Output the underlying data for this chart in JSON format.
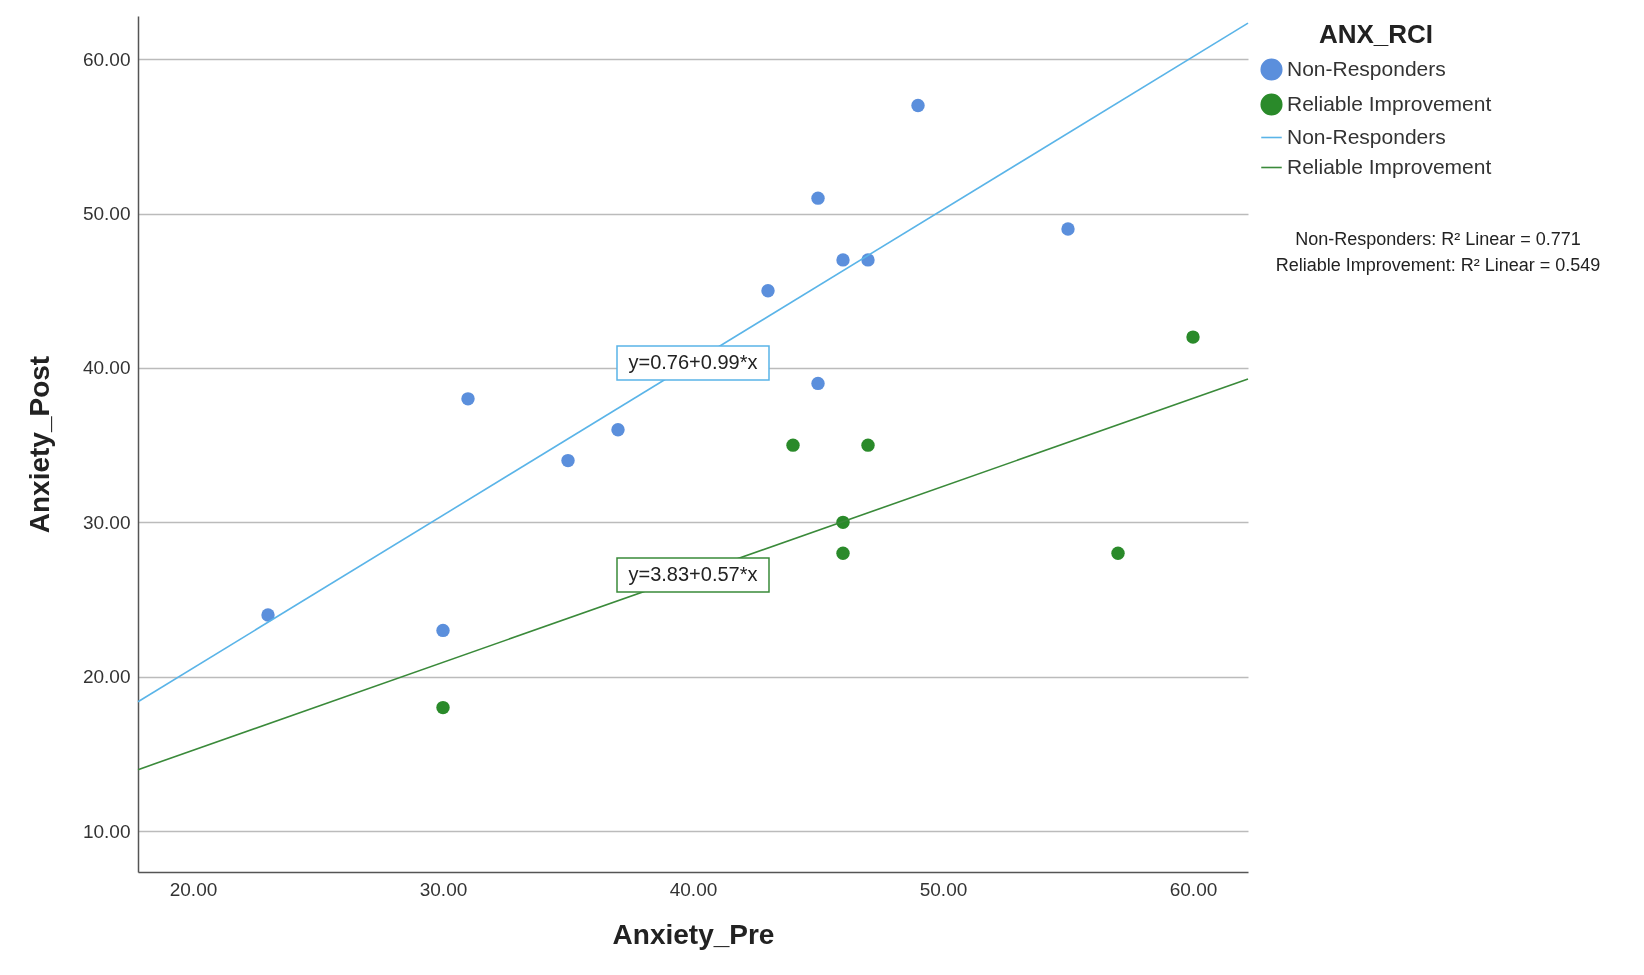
{
  "chart_data": {
    "type": "scatter",
    "xlabel": "Anxiety_Pre",
    "ylabel": "Anxiety_Post",
    "legend_title": "ANX_RCI",
    "legend": "top right",
    "grid": "y",
    "line_style": "solid",
    "xlim": [
      17.8,
      62.2
    ],
    "ylim": [
      7.35,
      62.8
    ],
    "xticks": [
      {
        "value": 20,
        "label": "20.00"
      },
      {
        "value": 30,
        "label": "30.00"
      },
      {
        "value": 40,
        "label": "40.00"
      },
      {
        "value": 50,
        "label": "50.00"
      },
      {
        "value": 60,
        "label": "60.00"
      }
    ],
    "yticks": [
      {
        "value": 10,
        "label": "10.00"
      },
      {
        "value": 20,
        "label": "20.00"
      },
      {
        "value": 30,
        "label": "30.00"
      },
      {
        "value": 40,
        "label": "40.00"
      },
      {
        "value": 50,
        "label": "50.00"
      },
      {
        "value": 60,
        "label": "60.00"
      }
    ],
    "series": [
      {
        "name": "Non-Responders",
        "type": "scatter",
        "color": "#5b8fdc",
        "x": [
          23,
          30,
          31,
          35,
          37,
          43,
          45,
          45,
          46,
          47,
          49,
          55
        ],
        "values": [
          24,
          23,
          38,
          34,
          36,
          45,
          51,
          39,
          47,
          47,
          57,
          49
        ]
      },
      {
        "name": "Reliable Improvement",
        "type": "scatter",
        "color": "#2a8a2a",
        "x": [
          30,
          44,
          46,
          46,
          47,
          57,
          60
        ],
        "values": [
          18,
          35,
          30,
          28,
          35,
          28,
          42
        ]
      },
      {
        "name": "Non-Responders",
        "type": "line",
        "color": "#5ab4e8",
        "x": [
          17.8,
          62.2
        ],
        "values": [
          18.38,
          62.34
        ]
      },
      {
        "name": "Reliable Improvement",
        "type": "line",
        "color": "#3a8a3a",
        "x": [
          17.8,
          62.2
        ],
        "values": [
          13.98,
          39.28
        ]
      }
    ],
    "annotations": [
      "y=0.76+0.99*x",
      "y=3.83+0.57*x",
      "Non-Responders: R² Linear = 0.771",
      "Reliable Improvement: R² Linear = 0.549"
    ]
  }
}
